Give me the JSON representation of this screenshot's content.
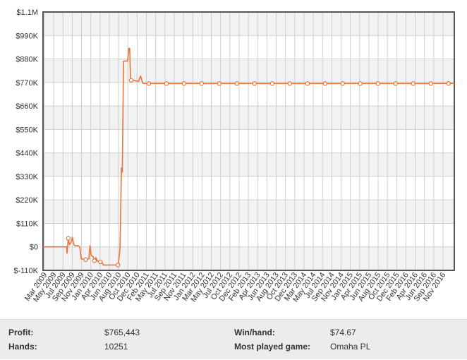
{
  "colors": {
    "line": "#e8743b",
    "plot_border": "#555555",
    "grid": "#cfcfcf",
    "band": "#f2f2f2"
  },
  "chart_data": {
    "type": "line",
    "title": "",
    "xlabel": "",
    "ylabel": "",
    "ylim": [
      -110000,
      1100000
    ],
    "yticks": [
      -110000,
      0,
      110000,
      220000,
      330000,
      440000,
      550000,
      660000,
      770000,
      880000,
      990000,
      1100000
    ],
    "ytick_labels": [
      "$-110K",
      "$0",
      "$110K",
      "$220K",
      "$330K",
      "$440K",
      "$550K",
      "$660K",
      "$770K",
      "$880K",
      "$990K",
      "$1.1M"
    ],
    "xticks": [
      "Mar 2009",
      "May 2009",
      "Jul 2009",
      "Sep 2009",
      "Nov 2009",
      "Jan 2010",
      "Apr 2010",
      "Jun 2010",
      "Aug 2010",
      "Oct 2010",
      "Dec 2010",
      "Feb 2011",
      "May 2011",
      "Jul 2011",
      "Sep 2011",
      "Nov 2011",
      "Jan 2012",
      "Mar 2012",
      "May 2012",
      "Jul 2012",
      "Oct 2012",
      "Dec 2012",
      "Feb 2013",
      "Apr 2013",
      "Jun 2013",
      "Aug 2013",
      "Oct 2013",
      "Dec 2013",
      "Mar 2014",
      "May 2014",
      "Jul 2014",
      "Sep 2014",
      "Nov 2014",
      "Jan 2015",
      "Apr 2015",
      "Jun 2015",
      "Aug 2015",
      "Oct 2015",
      "Dec 2015",
      "Feb 2016",
      "Apr 2016",
      "Jun 2016",
      "Sep 2016",
      "Nov 2016"
    ],
    "grid": true,
    "series": [
      {
        "values": [
          [
            0,
            0
          ],
          [
            3,
            0
          ],
          [
            6,
            0
          ],
          [
            8,
            0
          ],
          [
            8.2,
            -30000
          ],
          [
            8.6,
            40000
          ],
          [
            9,
            10000
          ],
          [
            9.5,
            20000
          ],
          [
            10,
            45000
          ],
          [
            10.5,
            10000
          ],
          [
            11,
            5000
          ],
          [
            12,
            5000
          ],
          [
            12.5,
            0
          ],
          [
            13,
            -55000
          ],
          [
            14,
            -60000
          ],
          [
            15,
            -60000
          ],
          [
            15.6,
            -55000
          ],
          [
            16,
            5000
          ],
          [
            16.4,
            -40000
          ],
          [
            17,
            -45000
          ],
          [
            17.5,
            -65000
          ],
          [
            18,
            -50000
          ],
          [
            18.5,
            -65000
          ],
          [
            19,
            -70000
          ],
          [
            20,
            -70000
          ],
          [
            20.5,
            -85000
          ],
          [
            22,
            -85000
          ],
          [
            24,
            -85000
          ],
          [
            25,
            -85000
          ],
          [
            25.6,
            -85000
          ],
          [
            26.2,
            -10000
          ],
          [
            26.7,
            370000
          ],
          [
            27,
            350000
          ],
          [
            27.4,
            870000
          ],
          [
            28.8,
            870000
          ],
          [
            29.2,
            930000
          ],
          [
            29.5,
            930000
          ],
          [
            29.8,
            780000
          ],
          [
            31,
            780000
          ],
          [
            32.5,
            775000
          ],
          [
            33.2,
            800000
          ],
          [
            34,
            765000
          ],
          [
            36,
            765000
          ],
          [
            42,
            765000
          ],
          [
            48,
            765000
          ],
          [
            54,
            765000
          ],
          [
            60,
            765000
          ],
          [
            66,
            765000
          ],
          [
            72,
            765000
          ],
          [
            78,
            765000
          ],
          [
            84,
            765000
          ],
          [
            90,
            765000
          ],
          [
            96,
            765000
          ],
          [
            102,
            765000
          ],
          [
            108,
            765000
          ],
          [
            114,
            765000
          ],
          [
            120,
            765000
          ],
          [
            126,
            765000
          ],
          [
            132,
            765000
          ],
          [
            138,
            765443
          ],
          [
            140,
            765443
          ]
        ]
      }
    ],
    "markers": [
      [
        8.6,
        40000
      ],
      [
        14.5,
        -60000
      ],
      [
        17.5,
        -65000
      ],
      [
        19.5,
        -70000
      ],
      [
        25.5,
        -85000
      ],
      [
        30,
        780000
      ],
      [
        36,
        765000
      ],
      [
        42,
        765000
      ],
      [
        48,
        765000
      ],
      [
        54,
        765000
      ],
      [
        60,
        765000
      ],
      [
        66,
        765000
      ],
      [
        72,
        765000
      ],
      [
        78,
        765000
      ],
      [
        84,
        765000
      ],
      [
        90,
        765000
      ],
      [
        96,
        765000
      ],
      [
        102,
        765000
      ],
      [
        108,
        765000
      ],
      [
        114,
        765000
      ],
      [
        120,
        765000
      ],
      [
        126,
        765000
      ],
      [
        132,
        765000
      ],
      [
        138,
        765443
      ]
    ],
    "x_domain": [
      0,
      140
    ]
  },
  "stats": {
    "profit_label": "Profit:",
    "profit_value": "$765,443",
    "hands_label": "Hands:",
    "hands_value": "10251",
    "winhand_label": "Win/hand:",
    "winhand_value": "$74.67",
    "game_label": "Most played game:",
    "game_value": "Omaha PL"
  }
}
